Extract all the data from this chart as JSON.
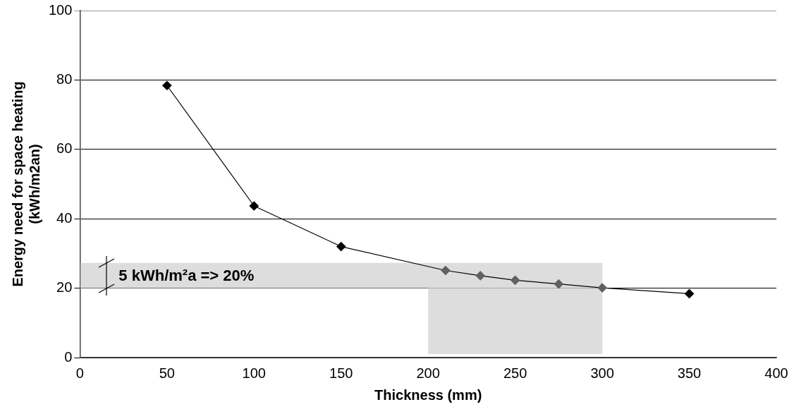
{
  "chart_data": {
    "type": "line",
    "xlabel": "Thickness (mm)",
    "ylabel": "Energy need for space heating\n(kWh/m2an)",
    "x": [
      50,
      100,
      150,
      210,
      230,
      250,
      275,
      300,
      350
    ],
    "series": [
      {
        "color": "#000000",
        "colors": [
          "#000000",
          "#000000",
          "#000000",
          "#606060",
          "#606060",
          "#606060",
          "#606060",
          "#606060",
          "#000000"
        ],
        "values": [
          78.4,
          43.7,
          32.0,
          25.1,
          23.6,
          22.3,
          21.2,
          20.1,
          18.4
        ]
      }
    ],
    "xlim": [
      0,
      400
    ],
    "xticks": [
      0,
      50,
      100,
      150,
      200,
      250,
      300,
      350,
      400
    ],
    "ylim": [
      0,
      100
    ],
    "yticks": [
      0,
      20,
      40,
      60,
      80,
      100
    ],
    "bands": [
      {
        "axis": "y",
        "from": 20,
        "to": 27.3,
        "label": "5 kWh/m²a => 20%",
        "color": "#dddddd"
      },
      {
        "axis": "x",
        "from": 200,
        "to": 300,
        "color": "#dddddd"
      }
    ],
    "grid": "y",
    "marker": "diamond",
    "line_style": "solid",
    "legend": false
  }
}
